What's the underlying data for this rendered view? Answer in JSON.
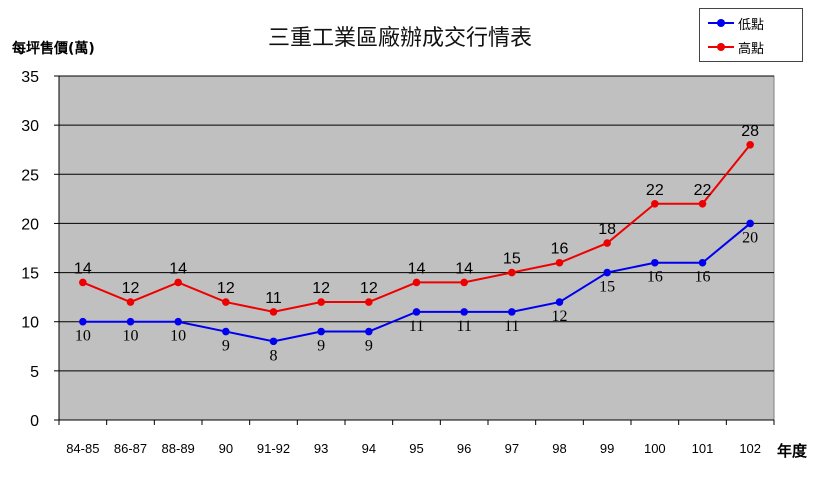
{
  "chart_data": {
    "type": "line",
    "title": "三重工業區廠辦成交行情表",
    "xlabel": "年度",
    "ylabel": "每坪售價(萬)",
    "categories": [
      "84-85",
      "86-87",
      "88-89",
      "90",
      "91-92",
      "93",
      "94",
      "95",
      "96",
      "97",
      "98",
      "99",
      "100",
      "101",
      "102"
    ],
    "ylim": [
      0,
      35
    ],
    "yticks": [
      0,
      5,
      10,
      15,
      20,
      25,
      30,
      35
    ],
    "grid": true,
    "legend_position": "top-right",
    "series": [
      {
        "name": "低點",
        "color": "#0000ee",
        "values": [
          10,
          10,
          10,
          9,
          8,
          9,
          9,
          11,
          11,
          11,
          12,
          15,
          16,
          16,
          20
        ]
      },
      {
        "name": "高點",
        "color": "#ee0000",
        "values": [
          14,
          12,
          14,
          12,
          11,
          12,
          12,
          14,
          14,
          15,
          16,
          18,
          22,
          22,
          28
        ]
      }
    ],
    "plot_background": "#c0c0c0"
  }
}
